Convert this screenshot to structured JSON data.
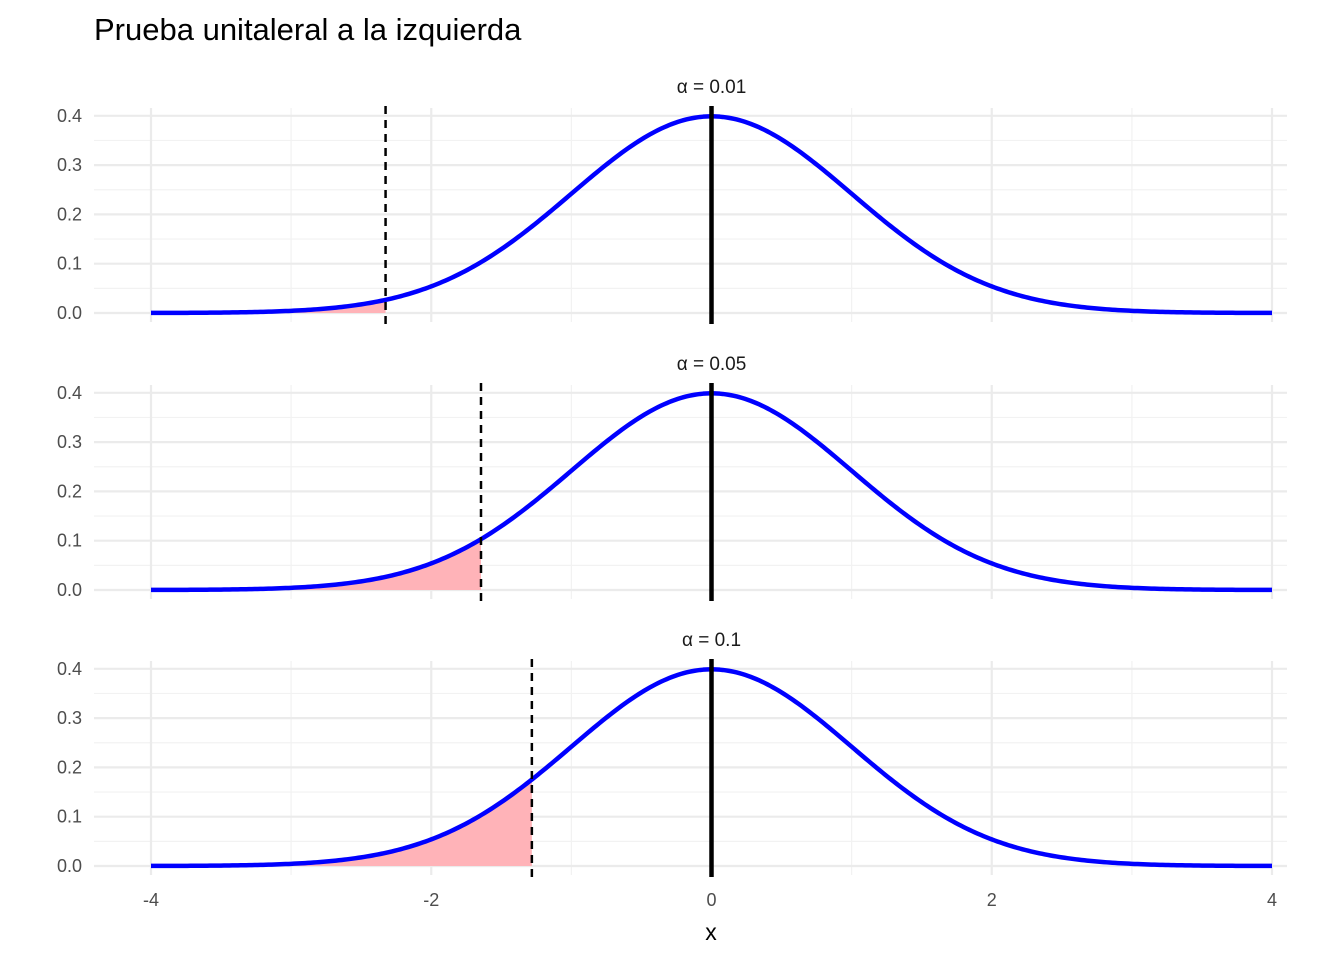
{
  "chart_data": {
    "type": "area",
    "title": "Prueba unitaleral a la izquierda",
    "xlabel": "x",
    "ylabel": "",
    "xlim": [
      -4,
      4
    ],
    "ylim": [
      0,
      0.4
    ],
    "x_ticks": [
      "-4",
      "-2",
      "0",
      "2",
      "4"
    ],
    "y_ticks": [
      "0.0",
      "0.1",
      "0.2",
      "0.3",
      "0.4"
    ],
    "grid": true,
    "series": [
      {
        "name": "",
        "distribution": "standard normal density",
        "x": [
          -4,
          -3,
          -2,
          -1,
          0,
          1,
          2,
          3,
          4
        ],
        "values": [
          0.0001,
          0.0044,
          0.054,
          0.242,
          0.399,
          0.242,
          0.054,
          0.0044,
          0.0001
        ]
      }
    ],
    "reference_line_x": 0,
    "panels": [
      {
        "strip_label": "α = 0.01",
        "alpha": 0.01,
        "critical_value": -2.326
      },
      {
        "strip_label": "α = 0.05",
        "alpha": 0.05,
        "critical_value": -1.645
      },
      {
        "strip_label": "α = 0.1",
        "alpha": 0.1,
        "critical_value": -1.282
      }
    ],
    "colors": {
      "curve": "#0000ff",
      "rejection_area": "#ffb3b8",
      "critical_line": "#000000",
      "mean_line": "#000000",
      "grid": "#ebebeb"
    }
  }
}
